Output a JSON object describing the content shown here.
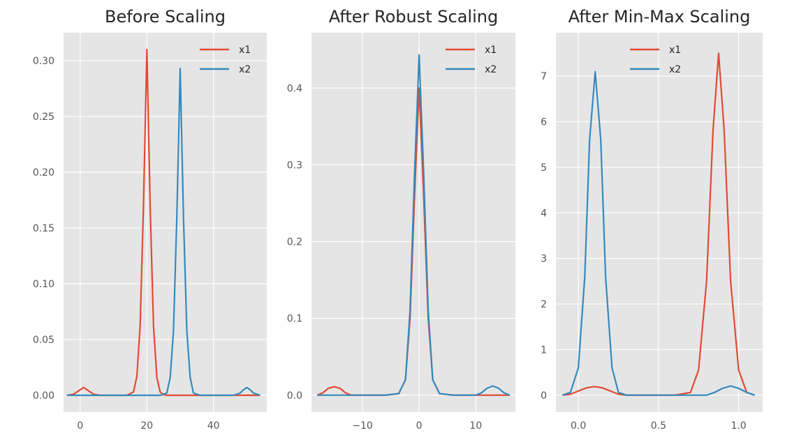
{
  "chart_data": [
    {
      "type": "line",
      "title": "Before Scaling",
      "xlim": [
        -5,
        56
      ],
      "ylim": [
        -0.015,
        0.325
      ],
      "xticks": [
        0,
        20,
        40
      ],
      "xtick_labels": [
        "0",
        "20",
        "40"
      ],
      "yticks": [
        0.0,
        0.05,
        0.1,
        0.15,
        0.2,
        0.25,
        0.3
      ],
      "ytick_labels": [
        "0.00",
        "0.05",
        "0.10",
        "0.15",
        "0.20",
        "0.25",
        "0.30"
      ],
      "grid": true,
      "legend": "top-right",
      "series": [
        {
          "name": "x1",
          "color": "#E24A33",
          "x": [
            -4,
            -2,
            0,
            1,
            2,
            4,
            6,
            10,
            14,
            16,
            17,
            18,
            19,
            20,
            21,
            22,
            23,
            24,
            25,
            26,
            30,
            40,
            54
          ],
          "y": [
            0.0,
            0.001,
            0.005,
            0.007,
            0.005,
            0.001,
            0.0,
            0.0,
            0.0,
            0.003,
            0.017,
            0.063,
            0.172,
            0.31,
            0.17,
            0.062,
            0.016,
            0.003,
            0.0005,
            0.0,
            0.0,
            0.0,
            0.0
          ]
        },
        {
          "name": "x2",
          "color": "#348ABD",
          "x": [
            -4,
            20,
            24,
            26,
            27,
            28,
            29,
            30,
            31,
            32,
            33,
            34,
            36,
            40,
            44,
            46,
            48,
            49,
            50,
            51,
            52,
            54
          ],
          "y": [
            0.0,
            0.0,
            0.0,
            0.002,
            0.016,
            0.058,
            0.16,
            0.293,
            0.16,
            0.058,
            0.016,
            0.002,
            0.0,
            0.0,
            0.0,
            0.0,
            0.002,
            0.005,
            0.007,
            0.005,
            0.002,
            0.0
          ]
        }
      ]
    },
    {
      "type": "line",
      "title": "After Robust Scaling",
      "xlim": [
        -19,
        17
      ],
      "ylim": [
        -0.022,
        0.472
      ],
      "xticks": [
        -10,
        0,
        10
      ],
      "xtick_labels": [
        "−10",
        "0",
        "10"
      ],
      "yticks": [
        0.0,
        0.1,
        0.2,
        0.3,
        0.4
      ],
      "ytick_labels": [
        "0.0",
        "0.1",
        "0.2",
        "0.3",
        "0.4"
      ],
      "grid": true,
      "legend": "top-right",
      "series": [
        {
          "name": "x1",
          "color": "#E24A33",
          "x": [
            -18,
            -17,
            -16,
            -15,
            -14,
            -13,
            -12,
            -6,
            -3.6,
            -2.4,
            -1.6,
            -0.8,
            0,
            0.8,
            1.6,
            2.4,
            3.6,
            6,
            16
          ],
          "y": [
            0.0,
            0.003,
            0.009,
            0.011,
            0.009,
            0.003,
            0.0,
            0.0,
            0.002,
            0.02,
            0.1,
            0.26,
            0.4,
            0.26,
            0.1,
            0.02,
            0.002,
            0.0,
            0.0
          ]
        },
        {
          "name": "x2",
          "color": "#348ABD",
          "x": [
            -18,
            -6,
            -3.6,
            -2.4,
            -1.6,
            -0.8,
            0,
            0.8,
            1.6,
            2.4,
            3.6,
            6,
            10,
            11,
            12,
            13,
            14,
            15,
            16
          ],
          "y": [
            0.0,
            0.0,
            0.002,
            0.02,
            0.11,
            0.29,
            0.443,
            0.29,
            0.11,
            0.02,
            0.002,
            0.0,
            0.0,
            0.003,
            0.009,
            0.012,
            0.009,
            0.003,
            0.0
          ]
        }
      ]
    },
    {
      "type": "line",
      "title": "After Min-Max Scaling",
      "xlim": [
        -0.14,
        1.15
      ],
      "ylim": [
        -0.37,
        7.95
      ],
      "xticks": [
        0.0,
        0.5,
        1.0
      ],
      "xtick_labels": [
        "0.0",
        "0.5",
        "1.0"
      ],
      "yticks": [
        0,
        1,
        2,
        3,
        4,
        5,
        6,
        7
      ],
      "ytick_labels": [
        "0",
        "1",
        "2",
        "3",
        "4",
        "5",
        "6",
        "7"
      ],
      "grid": true,
      "legend": "top-center",
      "series": [
        {
          "name": "x1",
          "color": "#E24A33",
          "x": [
            -0.1,
            -0.05,
            0.0,
            0.05,
            0.1,
            0.15,
            0.2,
            0.25,
            0.3,
            0.6,
            0.7,
            0.75,
            0.8,
            0.84,
            0.875,
            0.91,
            0.95,
            1.0,
            1.05,
            1.1
          ],
          "y": [
            0.0,
            0.02,
            0.09,
            0.16,
            0.19,
            0.16,
            0.09,
            0.02,
            0.0,
            0.0,
            0.06,
            0.55,
            2.5,
            5.8,
            7.5,
            5.8,
            2.5,
            0.55,
            0.06,
            0.0
          ]
        },
        {
          "name": "x2",
          "color": "#348ABD",
          "x": [
            -0.1,
            -0.05,
            0.0,
            0.04,
            0.07,
            0.105,
            0.14,
            0.17,
            0.21,
            0.25,
            0.3,
            0.6,
            0.8,
            0.85,
            0.9,
            0.95,
            1.0,
            1.05,
            1.1
          ],
          "y": [
            0.0,
            0.06,
            0.6,
            2.6,
            5.6,
            7.1,
            5.6,
            2.6,
            0.6,
            0.06,
            0.0,
            0.0,
            0.0,
            0.06,
            0.15,
            0.2,
            0.15,
            0.06,
            0.0
          ]
        }
      ]
    }
  ]
}
